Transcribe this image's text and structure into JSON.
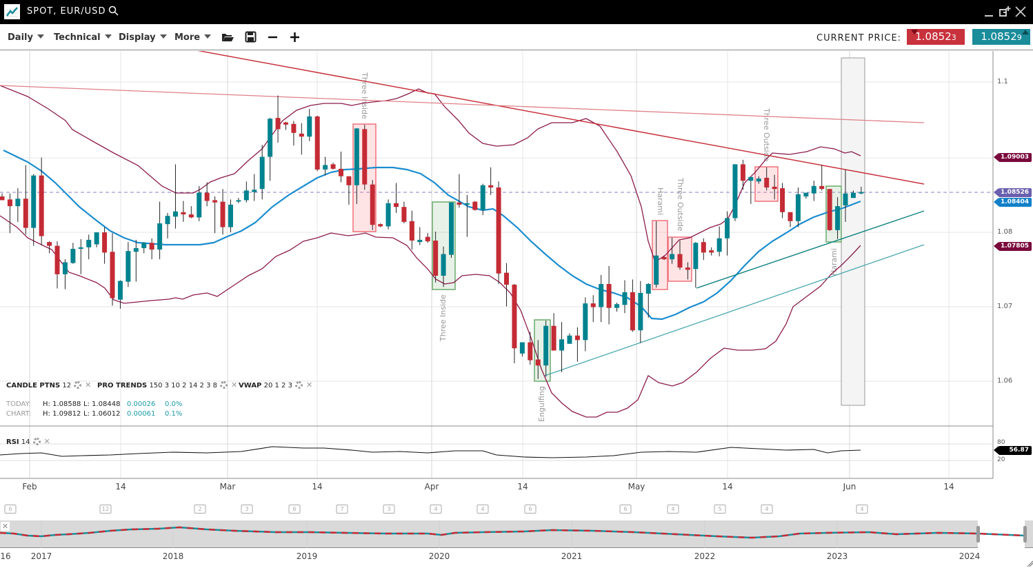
{
  "header": {
    "title": "SPOT, EUR/USD",
    "icons": [
      "chart-logo-icon",
      "search-icon",
      "minimize-icon",
      "popout-icon",
      "close-icon"
    ]
  },
  "toolbar": {
    "menus": [
      "Daily",
      "Technical",
      "Display",
      "More"
    ],
    "icons": [
      "folder-open-icon",
      "save-icon",
      "zoom-out-icon",
      "zoom-in-icon"
    ],
    "current_price_label": "CURRENT PRICE:",
    "bid": {
      "main": "1.0852",
      "pip": "3",
      "color": "#c8323c",
      "direction": "down"
    },
    "ask": {
      "main": "1.0852",
      "pip": "9",
      "color": "#1a8c9a",
      "direction": "up"
    }
  },
  "legend": {
    "indicators": [
      {
        "name": "CANDLE PTNS",
        "params": "12"
      },
      {
        "name": "PRO TRENDS",
        "params": "150 3 10 2 14 2 3 8"
      },
      {
        "name": "VWAP",
        "params": "20 1 2 3"
      }
    ],
    "today": {
      "label": "TODAY:",
      "high": "H: 1.08588",
      "low": "L: 1.08448",
      "change": "0.00026",
      "pct": "0.0%"
    },
    "chart": {
      "label": "CHART:",
      "high": "H: 1.09812",
      "low": "L: 1.06012",
      "change": "0.00061",
      "pct": "0.1%"
    },
    "rsi": {
      "name": "RSI",
      "params": "14"
    }
  },
  "chart_data": {
    "type": "candlestick",
    "instrument": "EUR/USD",
    "interval": "Daily",
    "y_ticks": [
      "1.1",
      "1.08",
      "1.07",
      "1.06"
    ],
    "ylim": [
      1.056,
      1.1
    ],
    "x_ticks": [
      "Feb",
      "14",
      "Mar",
      "14",
      "Apr",
      "14",
      "May",
      "14",
      "Jun",
      "14"
    ],
    "colors": {
      "up": "#00838f",
      "down": "#c42b35",
      "bands": "#8b1a4a",
      "ma": "#1a8ccf",
      "trend_red": "#c8323c",
      "trend_teal": "#0d8080"
    },
    "price_tags": [
      {
        "value": "1.09003",
        "color": "#7a0a3c"
      },
      {
        "value": "1.08526",
        "color": "#6a5fae"
      },
      {
        "value": "1.08404",
        "color": "#1180c8"
      },
      {
        "value": "1.07805",
        "color": "#7a0a3c"
      }
    ],
    "current_price_line": 1.08526,
    "candles_ohlc": [
      [
        1.0847,
        1.0851,
        1.0842,
        1.0842
      ],
      [
        1.0843,
        1.0851,
        1.0798,
        1.0834
      ],
      [
        1.0834,
        1.0858,
        1.0813,
        1.0844
      ],
      [
        1.0844,
        1.0889,
        1.0796,
        1.0805
      ],
      [
        1.0805,
        1.0877,
        1.0781,
        1.0875
      ],
      [
        1.0875,
        1.0899,
        1.0782,
        1.0794
      ],
      [
        1.0786,
        1.0787,
        1.0771,
        1.0781
      ],
      [
        1.0781,
        1.0787,
        1.0724,
        1.0743
      ],
      [
        1.0743,
        1.0763,
        1.0723,
        1.0759
      ],
      [
        1.0758,
        1.0785,
        1.0757,
        1.0777
      ],
      [
        1.0777,
        1.079,
        1.0743,
        1.0779
      ],
      [
        1.0779,
        1.0796,
        1.0763,
        1.0789
      ],
      [
        1.0783,
        1.0799,
        1.0779,
        1.0799
      ],
      [
        1.0799,
        1.0806,
        1.0757,
        1.0772
      ],
      [
        1.0773,
        1.0798,
        1.0701,
        1.0711
      ],
      [
        1.0709,
        1.0735,
        1.0697,
        1.0734
      ],
      [
        1.0733,
        1.0786,
        1.0726,
        1.0774
      ],
      [
        1.0773,
        1.0789,
        1.0733,
        1.0778
      ],
      [
        1.0778,
        1.0786,
        1.0771,
        1.0785
      ],
      [
        1.0785,
        1.0791,
        1.0763,
        1.0776
      ],
      [
        1.0776,
        1.084,
        1.0763,
        1.0811
      ],
      [
        1.081,
        1.0825,
        1.0791,
        1.0821
      ],
      [
        1.082,
        1.089,
        1.0804,
        1.0827
      ],
      [
        1.0826,
        1.0841,
        1.0813,
        1.0823
      ],
      [
        1.0823,
        1.0834,
        1.0818,
        1.0819
      ],
      [
        1.0819,
        1.0861,
        1.0814,
        1.0852
      ],
      [
        1.0852,
        1.0866,
        1.0834,
        1.0841
      ],
      [
        1.0842,
        1.0847,
        1.0798,
        1.0839
      ],
      [
        1.084,
        1.0857,
        1.0796,
        1.0806
      ],
      [
        1.0806,
        1.0843,
        1.0799,
        1.0836
      ],
      [
        1.0841,
        1.0845,
        1.0838,
        1.0842
      ],
      [
        1.0842,
        1.0867,
        1.0839,
        1.0855
      ],
      [
        1.0853,
        1.0877,
        1.0841,
        1.0856
      ],
      [
        1.0857,
        1.0916,
        1.0843,
        1.09
      ],
      [
        1.09,
        1.0952,
        1.0868,
        1.0951
      ],
      [
        1.0952,
        1.0982,
        1.0919,
        1.0937
      ],
      [
        1.0946,
        1.0947,
        1.0936,
        1.0943
      ],
      [
        1.0944,
        1.0948,
        1.0915,
        1.0932
      ],
      [
        1.0931,
        1.0945,
        1.0903,
        1.0927
      ],
      [
        1.0927,
        1.0964,
        1.0921,
        1.0954
      ],
      [
        1.0954,
        1.0955,
        1.0881,
        1.0883
      ],
      [
        1.0883,
        1.09,
        1.0875,
        1.0889
      ],
      [
        1.089,
        1.0892,
        1.0883,
        1.0884
      ],
      [
        1.0884,
        1.0907,
        1.0866,
        1.0874
      ],
      [
        1.0874,
        1.0874,
        1.0836,
        1.0862
      ],
      [
        1.0862,
        1.0938,
        1.0837,
        1.0938
      ],
      [
        1.0937,
        1.0943,
        1.0856,
        1.0863
      ],
      [
        1.0863,
        1.0869,
        1.0802,
        1.0809
      ],
      [
        1.081,
        1.0811,
        1.0806,
        1.0807
      ],
      [
        1.0807,
        1.0843,
        1.0803,
        1.0838
      ],
      [
        1.0838,
        1.0865,
        1.0825,
        1.0833
      ],
      [
        1.0833,
        1.084,
        1.0811,
        1.0813
      ],
      [
        1.0814,
        1.0828,
        1.0776,
        1.0788
      ],
      [
        1.0786,
        1.0806,
        1.0782,
        1.0789
      ],
      [
        1.0793,
        1.0798,
        1.0785,
        1.0787
      ],
      [
        1.0788,
        1.08,
        1.0732,
        1.0741
      ],
      [
        1.0741,
        1.078,
        1.0726,
        1.077
      ],
      [
        1.0769,
        1.0839,
        1.0765,
        1.0839
      ],
      [
        1.0839,
        1.0877,
        1.0832,
        1.0836
      ],
      [
        1.0836,
        1.0849,
        1.0793,
        1.0838
      ],
      [
        1.084,
        1.0841,
        1.0828,
        1.0829
      ],
      [
        1.0829,
        1.0864,
        1.0822,
        1.0862
      ],
      [
        1.0862,
        1.0886,
        1.0849,
        1.0859
      ],
      [
        1.0859,
        1.0867,
        1.073,
        1.0744
      ],
      [
        1.0745,
        1.0758,
        1.07,
        1.0729
      ],
      [
        1.0729,
        1.073,
        1.0624,
        1.0644
      ],
      [
        1.0637,
        1.0652,
        1.0633,
        1.0652
      ],
      [
        1.0652,
        1.0666,
        1.0622,
        1.0628
      ],
      [
        1.0629,
        1.0655,
        1.0603,
        1.0621
      ],
      [
        1.0621,
        1.0681,
        1.0606,
        1.0674
      ],
      [
        1.0674,
        1.0691,
        1.0641,
        1.0641
      ],
      [
        1.0641,
        1.0679,
        1.0612,
        1.0656
      ],
      [
        1.065,
        1.0664,
        1.065,
        1.0661
      ],
      [
        1.0661,
        1.0672,
        1.0626,
        1.0655
      ],
      [
        1.0655,
        1.0712,
        1.064,
        1.0704
      ],
      [
        1.0704,
        1.0715,
        1.0679,
        1.0699
      ],
      [
        1.0699,
        1.0742,
        1.0679,
        1.073
      ],
      [
        1.073,
        1.0754,
        1.0676,
        1.0698
      ],
      [
        1.0698,
        1.0705,
        1.0693,
        1.0703
      ],
      [
        1.0702,
        1.0735,
        1.0691,
        1.0719
      ],
      [
        1.0719,
        1.0736,
        1.0666,
        1.0668
      ],
      [
        1.0668,
        1.0734,
        1.0651,
        1.0718
      ],
      [
        1.0717,
        1.0731,
        1.0685,
        1.073
      ],
      [
        1.0729,
        1.0814,
        1.0725,
        1.0768
      ],
      [
        1.0766,
        1.0767,
        1.0762,
        1.0763
      ],
      [
        1.0763,
        1.0792,
        1.0757,
        1.077
      ],
      [
        1.077,
        1.0788,
        1.0749,
        1.0752
      ],
      [
        1.0752,
        1.0759,
        1.0736,
        1.0749
      ],
      [
        1.075,
        1.0786,
        1.0725,
        1.0785
      ],
      [
        1.0786,
        1.0791,
        1.0762,
        1.0772
      ],
      [
        1.0775,
        1.0779,
        1.0768,
        1.0772
      ],
      [
        1.0773,
        1.0807,
        1.0767,
        1.0791
      ],
      [
        1.0791,
        1.0827,
        1.0768,
        1.0818
      ],
      [
        1.0818,
        1.089,
        1.0814,
        1.089
      ],
      [
        1.089,
        1.0896,
        1.0856,
        1.0868
      ],
      [
        1.0868,
        1.0873,
        1.0837,
        1.0873
      ],
      [
        1.0867,
        1.0874,
        1.0864,
        1.0871
      ],
      [
        1.0872,
        1.0886,
        1.0855,
        1.0859
      ],
      [
        1.086,
        1.0876,
        1.0843,
        1.0857
      ],
      [
        1.0858,
        1.0865,
        1.0818,
        1.0826
      ],
      [
        1.0826,
        1.0826,
        1.0806,
        1.0814
      ],
      [
        1.0814,
        1.0859,
        1.0806,
        1.085
      ],
      [
        1.0847,
        1.0852,
        1.0844,
        1.0852
      ],
      [
        1.0851,
        1.0868,
        1.0841,
        1.0861
      ],
      [
        1.0861,
        1.0889,
        1.0855,
        1.0857
      ],
      [
        1.0857,
        1.0857,
        1.0801,
        1.0802
      ],
      [
        1.0802,
        1.0846,
        1.079,
        1.0834
      ],
      [
        1.0835,
        1.0883,
        1.0813,
        1.0851
      ],
      [
        1.0845,
        1.0855,
        1.0845,
        1.0852
      ],
      [
        1.0851,
        1.086,
        1.085,
        1.0853
      ]
    ],
    "patterns": [
      {
        "label": "Three Inside",
        "type": "bearish"
      },
      {
        "label": "Three Inside",
        "type": "bullish"
      },
      {
        "label": "Engulfing",
        "type": "bullish"
      },
      {
        "label": "Harami",
        "type": "bearish"
      },
      {
        "label": "Three Outside",
        "type": "bearish"
      },
      {
        "label": "Three Outside",
        "type": "bearish"
      },
      {
        "label": "Harami",
        "type": "bullish"
      }
    ],
    "rsi": {
      "value": "56.87",
      "levels": [
        "80",
        "20"
      ]
    },
    "navigator": {
      "years": [
        "16",
        "2017",
        "2018",
        "2019",
        "2020",
        "2021",
        "2022",
        "2023",
        "2024"
      ]
    }
  },
  "calendar_events": [
    "6",
    "12",
    "2",
    "3",
    "6",
    "7",
    "3",
    "4",
    "4",
    "6",
    "6",
    "4",
    "5",
    "4",
    "4"
  ]
}
